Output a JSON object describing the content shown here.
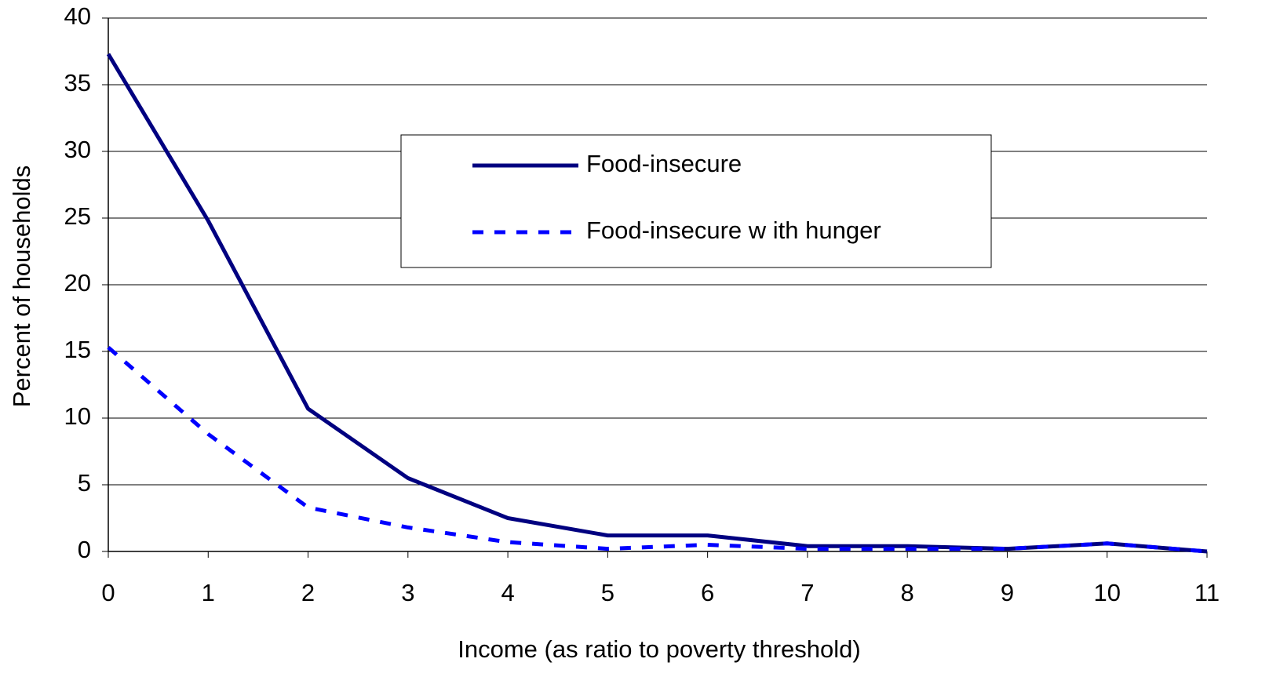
{
  "chart_data": {
    "type": "line",
    "x_label": "Income (as ratio to poverty threshold)",
    "y_label": "Percent of households",
    "x": [
      0,
      1,
      2,
      3,
      4,
      5,
      6,
      7,
      8,
      9,
      10,
      11
    ],
    "series": [
      {
        "name": "Food-insecure",
        "color": "#000080",
        "dashed": false,
        "values": [
          37.3,
          24.8,
          10.7,
          5.5,
          2.5,
          1.2,
          1.2,
          0.4,
          0.4,
          0.2,
          0.6,
          0
        ]
      },
      {
        "name": "Food-insecure w ith hunger",
        "color": "#0000ff",
        "dashed": true,
        "values": [
          15.3,
          8.8,
          3.3,
          1.8,
          0.7,
          0.2,
          0.5,
          0.2,
          0.2,
          0.2,
          0.6,
          0
        ]
      }
    ],
    "xlim": [
      0,
      11
    ],
    "xticks": [
      0,
      1,
      2,
      3,
      4,
      5,
      6,
      7,
      8,
      9,
      10,
      11
    ],
    "ylim": [
      0,
      40
    ],
    "yticks": [
      0,
      5,
      10,
      15,
      20,
      25,
      30,
      35,
      40
    ],
    "grid": true
  }
}
